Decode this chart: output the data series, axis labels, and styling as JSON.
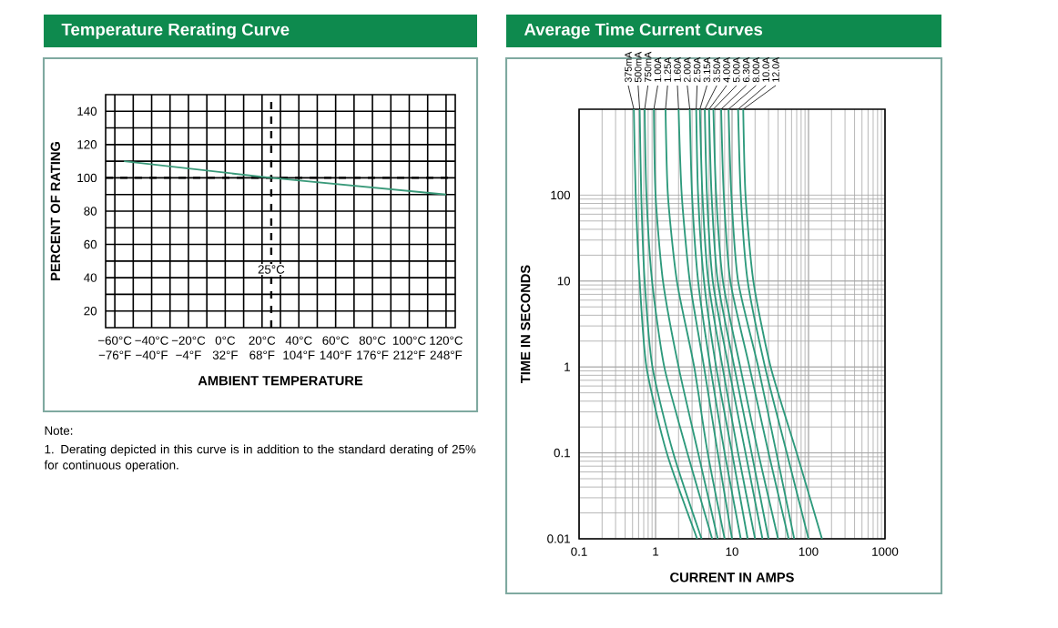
{
  "chart_data": [
    {
      "type": "line",
      "title": "Temperature Rerating Curve",
      "xlabel": "AMBIENT TEMPERATURE",
      "ylabel": "PERCENT OF RATING",
      "series": [
        {
          "color": "#3a9a7a",
          "x": [
            -55,
            25,
            120
          ],
          "values": [
            110,
            100,
            90
          ]
        }
      ],
      "xlim": [
        -65,
        125
      ],
      "ylim": [
        10,
        150
      ],
      "xticks": [
        {
          "value": -60,
          "label": "−60°C"
        },
        {
          "value": -40,
          "label": "−40°C"
        },
        {
          "value": -20,
          "label": "−20°C"
        },
        {
          "value": 0,
          "label": "0°C"
        },
        {
          "value": 20,
          "label": "20°C"
        },
        {
          "value": 40,
          "label": "40°C"
        },
        {
          "value": 60,
          "label": "60°C"
        },
        {
          "value": 80,
          "label": "80°C"
        },
        {
          "value": 100,
          "label": "100°C"
        },
        {
          "value": 120,
          "label": "120°C"
        }
      ],
      "x2lim": [
        -85,
        257
      ],
      "x2ticks": [
        {
          "value": -76,
          "label": "−76°F"
        },
        {
          "value": -40,
          "label": "−40°F"
        },
        {
          "value": -4,
          "label": "−4°F"
        },
        {
          "value": 32,
          "label": "32°F"
        },
        {
          "value": 68,
          "label": "68°F"
        },
        {
          "value": 104,
          "label": "104°F"
        },
        {
          "value": 140,
          "label": "140°F"
        },
        {
          "value": 176,
          "label": "176°F"
        },
        {
          "value": 212,
          "label": "212°F"
        },
        {
          "value": 248,
          "label": "248°F"
        }
      ],
      "yticks": [
        20,
        40,
        60,
        80,
        100,
        120,
        140
      ],
      "grid": true,
      "ref_lines": [
        {
          "axis": "x",
          "value": 25,
          "label": "25°C",
          "line_style": "dashed"
        },
        {
          "axis": "y",
          "value": 100,
          "line_style": "dashed"
        }
      ],
      "annotations": [
        "Note:",
        "1. Derating depicted in this curve is in addition to the standard derating of 25% for continuous operation."
      ]
    },
    {
      "type": "line",
      "title": "Average Time Current Curves",
      "xlabel": "CURRENT IN AMPS",
      "ylabel": "TIME IN SECONDS",
      "log": "xy",
      "xlim": [
        0.1,
        1000
      ],
      "ylim": [
        0.01,
        1000
      ],
      "xticks": [
        0.1,
        1,
        10,
        100,
        1000
      ],
      "yticks": [
        0.01,
        0.1,
        1,
        10,
        100
      ],
      "grid": true,
      "series": [
        {
          "name": "375mA",
          "color": "#2e9a7c",
          "x": [
            0.52,
            0.55,
            0.62,
            0.76,
            1.4,
            3.5
          ],
          "values": [
            1000,
            100,
            10,
            1,
            0.1,
            0.01
          ]
        },
        {
          "name": "500mA",
          "color": "#2e9a7c",
          "x": [
            0.62,
            0.65,
            0.72,
            0.91,
            1.7,
            4.0
          ],
          "values": [
            1000,
            100,
            10,
            1,
            0.1,
            0.01
          ]
        },
        {
          "name": "750mA",
          "color": "#2e9a7c",
          "x": [
            0.72,
            0.76,
            0.9,
            1.3,
            2.6,
            5.5
          ],
          "values": [
            1000,
            100,
            10,
            1,
            0.1,
            0.01
          ]
        },
        {
          "name": "1.00A",
          "color": "#2e9a7c",
          "x": [
            0.95,
            1.0,
            1.25,
            2.0,
            3.6,
            6.5
          ],
          "values": [
            1000,
            100,
            10,
            1,
            0.1,
            0.01
          ]
        },
        {
          "name": "1.25A",
          "color": "#2e9a7c",
          "x": [
            1.35,
            1.45,
            1.9,
            3.2,
            4.8,
            8
          ],
          "values": [
            1000,
            100,
            10,
            1,
            0.1,
            0.01
          ]
        },
        {
          "name": "1.60A",
          "color": "#2e9a7c",
          "x": [
            2.0,
            2.2,
            2.8,
            4.3,
            6.5,
            10
          ],
          "values": [
            1000,
            100,
            10,
            1,
            0.1,
            0.01
          ]
        },
        {
          "name": "2.00A",
          "color": "#2e9a7c",
          "x": [
            2.8,
            3.0,
            3.6,
            5.2,
            8,
            13
          ],
          "values": [
            1000,
            100,
            10,
            1,
            0.1,
            0.01
          ]
        },
        {
          "name": "2.50A",
          "color": "#2e9a7c",
          "x": [
            3.4,
            3.6,
            4.3,
            6.2,
            10,
            16
          ],
          "values": [
            1000,
            100,
            10,
            1,
            0.1,
            0.01
          ]
        },
        {
          "name": "3.15A",
          "color": "#2e9a7c",
          "x": [
            3.8,
            4.1,
            4.9,
            7.5,
            12,
            20
          ],
          "values": [
            1000,
            100,
            10,
            1,
            0.1,
            0.01
          ]
        },
        {
          "name": "3.50A",
          "color": "#2e9a7c",
          "x": [
            4.4,
            4.7,
            5.6,
            9.0,
            15,
            25
          ],
          "values": [
            1000,
            100,
            10,
            1,
            0.1,
            0.01
          ]
        },
        {
          "name": "4.00A",
          "color": "#2e9a7c",
          "x": [
            5.0,
            5.4,
            6.5,
            10.7,
            18,
            30
          ],
          "values": [
            1000,
            100,
            10,
            1,
            0.1,
            0.01
          ]
        },
        {
          "name": "5.00A",
          "color": "#2e9a7c",
          "x": [
            5.7,
            6.2,
            7.6,
            12.8,
            22,
            40
          ],
          "values": [
            1000,
            100,
            10,
            1,
            0.1,
            0.01
          ]
        },
        {
          "name": "6.30A",
          "color": "#2e9a7c",
          "x": [
            7.2,
            7.8,
            9.5,
            16.9,
            30,
            55
          ],
          "values": [
            1000,
            100,
            10,
            1,
            0.1,
            0.01
          ]
        },
        {
          "name": "8.00A",
          "color": "#2e9a7c",
          "x": [
            9,
            9.8,
            12,
            22,
            38,
            65
          ],
          "values": [
            1000,
            100,
            10,
            1,
            0.1,
            0.01
          ]
        },
        {
          "name": "10.0A",
          "color": "#2e9a7c",
          "x": [
            12,
            13,
            16,
            27,
            52,
            100
          ],
          "values": [
            1000,
            100,
            10,
            1,
            0.1,
            0.01
          ]
        },
        {
          "name": "12.0A",
          "color": "#2e9a7c",
          "x": [
            14,
            15,
            19,
            32,
            70,
            150
          ],
          "values": [
            1000,
            100,
            10,
            1,
            0.1,
            0.01
          ]
        }
      ]
    }
  ]
}
